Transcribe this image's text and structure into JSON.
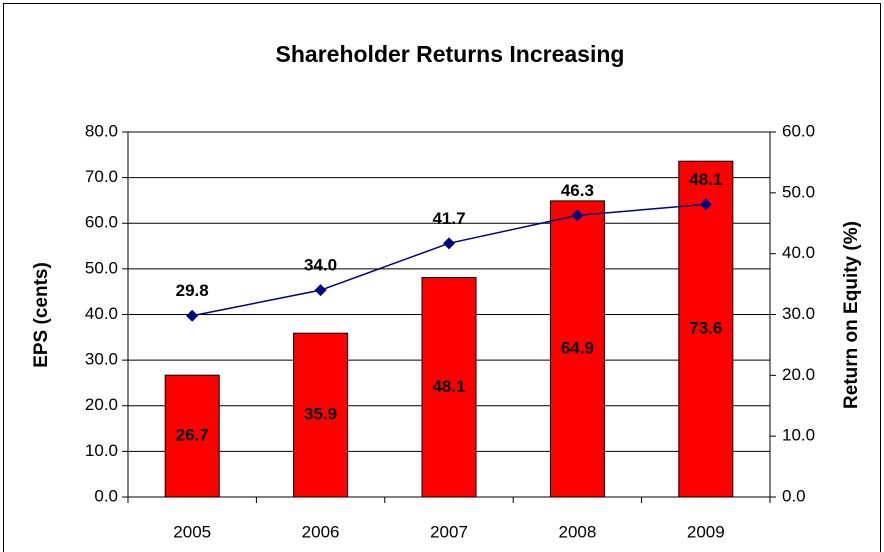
{
  "chart_data": {
    "type": "bar_line",
    "title": "Shareholder Returns Increasing",
    "y_label": "EPS (cents)",
    "y2_label": "Return on Equity (%)",
    "categories": [
      "2005",
      "2006",
      "2007",
      "2008",
      "2009"
    ],
    "series": [
      {
        "name": "EPS",
        "type": "bar",
        "color": "#ff0000",
        "values": [
          26.7,
          35.9,
          48.1,
          64.9,
          73.6
        ]
      },
      {
        "name": "ROE",
        "type": "line",
        "axis": "y2",
        "color": "#000080",
        "values": [
          29.8,
          34.0,
          41.7,
          46.3,
          48.1
        ],
        "value_labels": [
          "29.8",
          "34.0",
          "41.7",
          "46.3",
          "48.1"
        ]
      }
    ],
    "ylim": [
      0,
      80
    ],
    "yticks": [
      {
        "value": 0,
        "label": "0.0"
      },
      {
        "value": 10,
        "label": "10.0"
      },
      {
        "value": 20,
        "label": "20.0"
      },
      {
        "value": 30,
        "label": "30.0"
      },
      {
        "value": 40,
        "label": "40.0"
      },
      {
        "value": 50,
        "label": "50.0"
      },
      {
        "value": 60,
        "label": "60.0"
      },
      {
        "value": 70,
        "label": "70.0"
      },
      {
        "value": 80,
        "label": "80.0"
      }
    ],
    "y2lim": [
      0,
      60
    ],
    "y2ticks": [
      {
        "value": 0,
        "label": "0.0"
      },
      {
        "value": 10,
        "label": "10.0"
      },
      {
        "value": 20,
        "label": "20.0"
      },
      {
        "value": 30,
        "label": "30.0"
      },
      {
        "value": 40,
        "label": "40.0"
      },
      {
        "value": 50,
        "label": "50.0"
      },
      {
        "value": 60,
        "label": "60.0"
      }
    ],
    "grid": true
  }
}
